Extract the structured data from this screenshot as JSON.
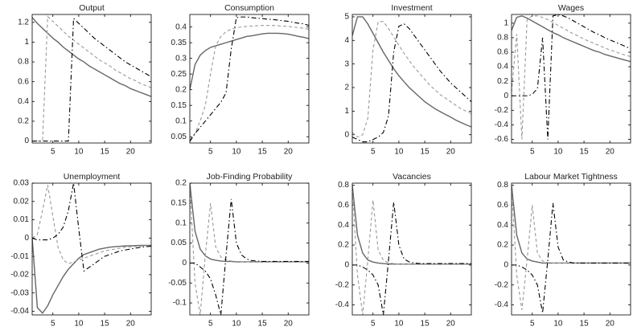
{
  "chart_data": [
    {
      "type": "line",
      "title": "Output",
      "x": [
        1,
        2,
        3,
        4,
        5,
        6,
        7,
        8,
        9,
        10,
        11,
        12,
        13,
        14,
        15,
        16,
        17,
        18,
        19,
        20,
        21,
        22,
        23,
        24
      ],
      "xlim": [
        1,
        24
      ],
      "xticks": [
        5,
        10,
        15,
        20
      ],
      "ylim": [
        -0.02,
        1.28
      ],
      "yticks": [
        0,
        0.2,
        0.4,
        0.6,
        0.8,
        1,
        1.2
      ],
      "series": [
        {
          "color": "#666666",
          "dash": "solid",
          "values": [
            1.25,
            1.19,
            1.14,
            1.09,
            1.04,
            1.0,
            0.95,
            0.91,
            0.87,
            0.83,
            0.8,
            0.76,
            0.73,
            0.7,
            0.67,
            0.64,
            0.61,
            0.58,
            0.56,
            0.53,
            0.51,
            0.49,
            0.47,
            0.45
          ]
        },
        {
          "color": "#999999",
          "dash": "dashed",
          "values": [
            0,
            0,
            0,
            1.26,
            1.21,
            1.16,
            1.11,
            1.06,
            1.02,
            0.98,
            0.94,
            0.9,
            0.86,
            0.82,
            0.79,
            0.76,
            0.72,
            0.69,
            0.66,
            0.63,
            0.61,
            0.58,
            0.56,
            0.54
          ]
        },
        {
          "color": "#000000",
          "dash": "dashdot",
          "values": [
            0,
            0,
            0,
            0,
            0,
            0,
            0,
            0,
            1.24,
            1.19,
            1.14,
            1.09,
            1.04,
            1.0,
            0.96,
            0.92,
            0.88,
            0.84,
            0.8,
            0.77,
            0.74,
            0.71,
            0.68,
            0.65
          ]
        }
      ]
    },
    {
      "type": "line",
      "title": "Consumption",
      "x": [
        1,
        2,
        3,
        4,
        5,
        6,
        7,
        8,
        9,
        10,
        11,
        12,
        13,
        14,
        15,
        16,
        17,
        18,
        19,
        20,
        21,
        22,
        23,
        24
      ],
      "xlim": [
        1,
        24
      ],
      "xticks": [
        5,
        10,
        15,
        20
      ],
      "ylim": [
        0.03,
        0.44
      ],
      "yticks": [
        0.05,
        0.1,
        0.15,
        0.2,
        0.25,
        0.3,
        0.35,
        0.4
      ],
      "series": [
        {
          "color": "#666666",
          "dash": "solid",
          "values": [
            0.2,
            0.28,
            0.31,
            0.325,
            0.335,
            0.34,
            0.345,
            0.35,
            0.355,
            0.36,
            0.365,
            0.37,
            0.372,
            0.375,
            0.378,
            0.38,
            0.38,
            0.38,
            0.379,
            0.377,
            0.374,
            0.37,
            0.367,
            0.363
          ]
        },
        {
          "color": "#999999",
          "dash": "dashed",
          "values": [
            0.04,
            0.06,
            0.1,
            0.15,
            0.25,
            0.34,
            0.37,
            0.385,
            0.393,
            0.398,
            0.4,
            0.402,
            0.403,
            0.404,
            0.405,
            0.405,
            0.405,
            0.404,
            0.403,
            0.402,
            0.4,
            0.398,
            0.396,
            0.393
          ]
        },
        {
          "color": "#000000",
          "dash": "dashdot",
          "values": [
            0.035,
            0.06,
            0.08,
            0.1,
            0.12,
            0.14,
            0.16,
            0.19,
            0.33,
            0.43,
            0.432,
            0.432,
            0.43,
            0.428,
            0.427,
            0.425,
            0.424,
            0.422,
            0.42,
            0.418,
            0.415,
            0.412,
            0.41,
            0.405
          ]
        }
      ]
    },
    {
      "type": "line",
      "title": "Investment",
      "x": [
        1,
        2,
        3,
        4,
        5,
        6,
        7,
        8,
        9,
        10,
        11,
        12,
        13,
        14,
        15,
        16,
        17,
        18,
        19,
        20,
        21,
        22,
        23,
        24
      ],
      "xlim": [
        1,
        24
      ],
      "xticks": [
        5,
        10,
        15,
        20
      ],
      "ylim": [
        -0.35,
        5.1
      ],
      "yticks": [
        0,
        1,
        2,
        3,
        4,
        5
      ],
      "series": [
        {
          "color": "#666666",
          "dash": "solid",
          "values": [
            4.2,
            5.0,
            5.0,
            4.7,
            4.3,
            3.9,
            3.5,
            3.15,
            2.8,
            2.5,
            2.25,
            2.0,
            1.8,
            1.6,
            1.4,
            1.25,
            1.1,
            0.98,
            0.86,
            0.75,
            0.62,
            0.52,
            0.42,
            0.33
          ]
        },
        {
          "color": "#999999",
          "dash": "dashed",
          "values": [
            0.1,
            -0.1,
            0,
            0.7,
            3.6,
            4.8,
            4.8,
            4.5,
            4.15,
            3.8,
            3.45,
            3.15,
            2.85,
            2.6,
            2.35,
            2.1,
            1.9,
            1.7,
            1.55,
            1.4,
            1.25,
            1.1,
            1.0,
            0.9
          ]
        },
        {
          "color": "#000000",
          "dash": "dashdot",
          "values": [
            -0.1,
            -0.2,
            -0.3,
            -0.3,
            -0.2,
            -0.1,
            0.1,
            0.8,
            3.5,
            4.6,
            4.7,
            4.5,
            4.2,
            3.9,
            3.6,
            3.3,
            3.0,
            2.7,
            2.45,
            2.2,
            2.0,
            1.8,
            1.6,
            1.4
          ]
        }
      ]
    },
    {
      "type": "line",
      "title": "Wages",
      "x": [
        1,
        2,
        3,
        4,
        5,
        6,
        7,
        8,
        9,
        10,
        11,
        12,
        13,
        14,
        15,
        16,
        17,
        18,
        19,
        20,
        21,
        22,
        23,
        24
      ],
      "xlim": [
        1,
        24
      ],
      "xticks": [
        5,
        10,
        15,
        20
      ],
      "ylim": [
        -0.65,
        1.12
      ],
      "yticks": [
        -0.6,
        -0.4,
        -0.2,
        0,
        0.2,
        0.4,
        0.6,
        0.8,
        1
      ],
      "series": [
        {
          "color": "#666666",
          "dash": "solid",
          "values": [
            0.9,
            1.08,
            1.1,
            1.07,
            1.03,
            0.99,
            0.95,
            0.91,
            0.87,
            0.84,
            0.8,
            0.77,
            0.74,
            0.71,
            0.68,
            0.65,
            0.62,
            0.6,
            0.57,
            0.55,
            0.53,
            0.51,
            0.49,
            0.47
          ]
        },
        {
          "color": "#999999",
          "dash": "dashed",
          "values": [
            0.05,
            0.85,
            -0.6,
            1.05,
            1.1,
            1.1,
            1.08,
            1.05,
            1.01,
            0.97,
            0.93,
            0.89,
            0.85,
            0.82,
            0.78,
            0.75,
            0.72,
            0.69,
            0.66,
            0.63,
            0.61,
            0.58,
            0.56,
            0.54
          ]
        },
        {
          "color": "#000000",
          "dash": "dashdot",
          "values": [
            0,
            0,
            0,
            0,
            0.02,
            0.1,
            0.8,
            -0.6,
            1.1,
            1.12,
            1.1,
            1.07,
            1.03,
            0.99,
            0.95,
            0.91,
            0.87,
            0.84,
            0.8,
            0.77,
            0.74,
            0.71,
            0.68,
            0.65
          ]
        }
      ]
    },
    {
      "type": "line",
      "title": "Unemployment",
      "x": [
        1,
        2,
        3,
        4,
        5,
        6,
        7,
        8,
        9,
        10,
        11,
        12,
        13,
        14,
        15,
        16,
        17,
        18,
        19,
        20,
        21,
        22,
        23,
        24
      ],
      "xlim": [
        1,
        24
      ],
      "xticks": [
        5,
        10,
        15,
        20
      ],
      "ylim": [
        -0.042,
        0.03
      ],
      "yticks": [
        -0.04,
        -0.03,
        -0.02,
        -0.01,
        0,
        0.01,
        0.02,
        0.03
      ],
      "series": [
        {
          "color": "#666666",
          "dash": "solid",
          "values": [
            0,
            -0.038,
            -0.041,
            -0.037,
            -0.031,
            -0.026,
            -0.021,
            -0.017,
            -0.014,
            -0.011,
            -0.009,
            -0.008,
            -0.007,
            -0.006,
            -0.0055,
            -0.005,
            -0.0047,
            -0.0045,
            -0.0043,
            -0.0042,
            -0.0041,
            -0.004,
            -0.004,
            -0.004
          ]
        },
        {
          "color": "#999999",
          "dash": "dashed",
          "values": [
            0,
            0.002,
            0.015,
            0.029,
            0.012,
            -0.005,
            -0.012,
            -0.014,
            -0.013,
            -0.012,
            -0.011,
            -0.01,
            -0.009,
            -0.008,
            -0.007,
            -0.0065,
            -0.006,
            -0.0055,
            -0.005,
            -0.0048,
            -0.0046,
            -0.0044,
            -0.0042,
            -0.0041
          ]
        },
        {
          "color": "#000000",
          "dash": "dashdot",
          "values": [
            0,
            -0.001,
            -0.001,
            -0.001,
            0,
            0.002,
            0.006,
            0.015,
            0.03,
            0.005,
            -0.018,
            -0.016,
            -0.014,
            -0.012,
            -0.01,
            -0.009,
            -0.008,
            -0.007,
            -0.0065,
            -0.006,
            -0.0055,
            -0.005,
            -0.0047,
            -0.0045
          ]
        }
      ]
    },
    {
      "type": "line",
      "title": "Job-Finding Probability",
      "x": [
        1,
        2,
        3,
        4,
        5,
        6,
        7,
        8,
        9,
        10,
        11,
        12,
        13,
        14,
        15,
        16,
        17,
        18,
        19,
        20,
        21,
        22,
        23,
        24
      ],
      "xlim": [
        1,
        24
      ],
      "xticks": [
        5,
        10,
        15,
        20
      ],
      "ylim": [
        -0.13,
        0.2
      ],
      "yticks": [
        -0.1,
        -0.05,
        0,
        0.05,
        0.1,
        0.15,
        0.2
      ],
      "series": [
        {
          "color": "#666666",
          "dash": "solid",
          "values": [
            0.2,
            0.08,
            0.035,
            0.018,
            0.01,
            0.007,
            0.005,
            0.004,
            0.004,
            0.003,
            0.003,
            0.003,
            0.003,
            0.003,
            0.003,
            0.003,
            0.003,
            0.003,
            0.003,
            0.003,
            0.003,
            0.003,
            0.003,
            0.003
          ]
        },
        {
          "color": "#999999",
          "dash": "dashed",
          "values": [
            0.2,
            -0.05,
            -0.13,
            0.02,
            0.15,
            0.04,
            0.015,
            0.008,
            0.005,
            0.004,
            0.003,
            0.003,
            0.003,
            0.003,
            0.003,
            0.003,
            0.003,
            0.003,
            0.003,
            0.003,
            0.003,
            0.003,
            0.003,
            0.003
          ]
        },
        {
          "color": "#000000",
          "dash": "dashdot",
          "values": [
            0,
            0,
            -0.01,
            -0.02,
            -0.04,
            -0.08,
            -0.13,
            0.02,
            0.16,
            0.05,
            0.02,
            0.01,
            0.006,
            0.005,
            0.004,
            0.004,
            0.004,
            0.004,
            0.004,
            0.004,
            0.004,
            0.004,
            0.004,
            0.004
          ]
        }
      ]
    },
    {
      "type": "line",
      "title": "Vacancies",
      "x": [
        1,
        2,
        3,
        4,
        5,
        6,
        7,
        8,
        9,
        10,
        11,
        12,
        13,
        14,
        15,
        16,
        17,
        18,
        19,
        20,
        21,
        22,
        23,
        24
      ],
      "xlim": [
        1,
        24
      ],
      "xticks": [
        5,
        10,
        15,
        20
      ],
      "ylim": [
        -0.5,
        0.82
      ],
      "yticks": [
        -0.4,
        -0.2,
        0,
        0.2,
        0.4,
        0.6,
        0.8
      ],
      "series": [
        {
          "color": "#666666",
          "dash": "solid",
          "values": [
            0.8,
            0.3,
            0.12,
            0.05,
            0.03,
            0.02,
            0.015,
            0.01,
            0.01,
            0.01,
            0.01,
            0.01,
            0.01,
            0.01,
            0.01,
            0.01,
            0.01,
            0.01,
            0.01,
            0.01,
            0.01,
            0.01,
            0.01,
            0.01
          ]
        },
        {
          "color": "#999999",
          "dash": "dashed",
          "values": [
            0.8,
            -0.1,
            -0.5,
            0.05,
            0.65,
            0.15,
            0.05,
            0.02,
            0.015,
            0.01,
            0.01,
            0.01,
            0.01,
            0.01,
            0.01,
            0.01,
            0.01,
            0.01,
            0.01,
            0.01,
            0.01,
            0.01,
            0.01,
            0.01
          ]
        },
        {
          "color": "#000000",
          "dash": "dashdot",
          "values": [
            0,
            0,
            -0.02,
            -0.05,
            -0.1,
            -0.2,
            -0.5,
            0.05,
            0.63,
            0.2,
            0.06,
            0.03,
            0.02,
            0.015,
            0.015,
            0.015,
            0.015,
            0.015,
            0.015,
            0.015,
            0.015,
            0.015,
            0.015,
            0.015
          ]
        }
      ]
    },
    {
      "type": "line",
      "title": "Labour Market Tightness",
      "x": [
        1,
        2,
        3,
        4,
        5,
        6,
        7,
        8,
        9,
        10,
        11,
        12,
        13,
        14,
        15,
        16,
        17,
        18,
        19,
        20,
        21,
        22,
        23,
        24
      ],
      "xlim": [
        1,
        24
      ],
      "xticks": [
        5,
        10,
        15,
        20
      ],
      "ylim": [
        -0.5,
        0.82
      ],
      "yticks": [
        -0.4,
        -0.2,
        0,
        0.2,
        0.4,
        0.6,
        0.8
      ],
      "series": [
        {
          "color": "#666666",
          "dash": "solid",
          "values": [
            0.8,
            0.3,
            0.12,
            0.06,
            0.04,
            0.03,
            0.02,
            0.02,
            0.02,
            0.02,
            0.02,
            0.02,
            0.02,
            0.02,
            0.02,
            0.02,
            0.02,
            0.02,
            0.02,
            0.02,
            0.02,
            0.02,
            0.02,
            0.02
          ]
        },
        {
          "color": "#999999",
          "dash": "dashed",
          "values": [
            0.8,
            -0.1,
            -0.45,
            0.05,
            0.6,
            0.12,
            0.04,
            0.025,
            0.02,
            0.02,
            0.02,
            0.02,
            0.02,
            0.02,
            0.02,
            0.02,
            0.02,
            0.02,
            0.02,
            0.02,
            0.02,
            0.02,
            0.02,
            0.02
          ]
        },
        {
          "color": "#000000",
          "dash": "dashdot",
          "values": [
            0,
            0,
            -0.02,
            -0.05,
            -0.1,
            -0.2,
            -0.48,
            0.05,
            0.62,
            0.18,
            0.05,
            0.03,
            0.02,
            0.02,
            0.02,
            0.02,
            0.02,
            0.02,
            0.02,
            0.02,
            0.02,
            0.02,
            0.02,
            0.02
          ]
        }
      ]
    }
  ]
}
